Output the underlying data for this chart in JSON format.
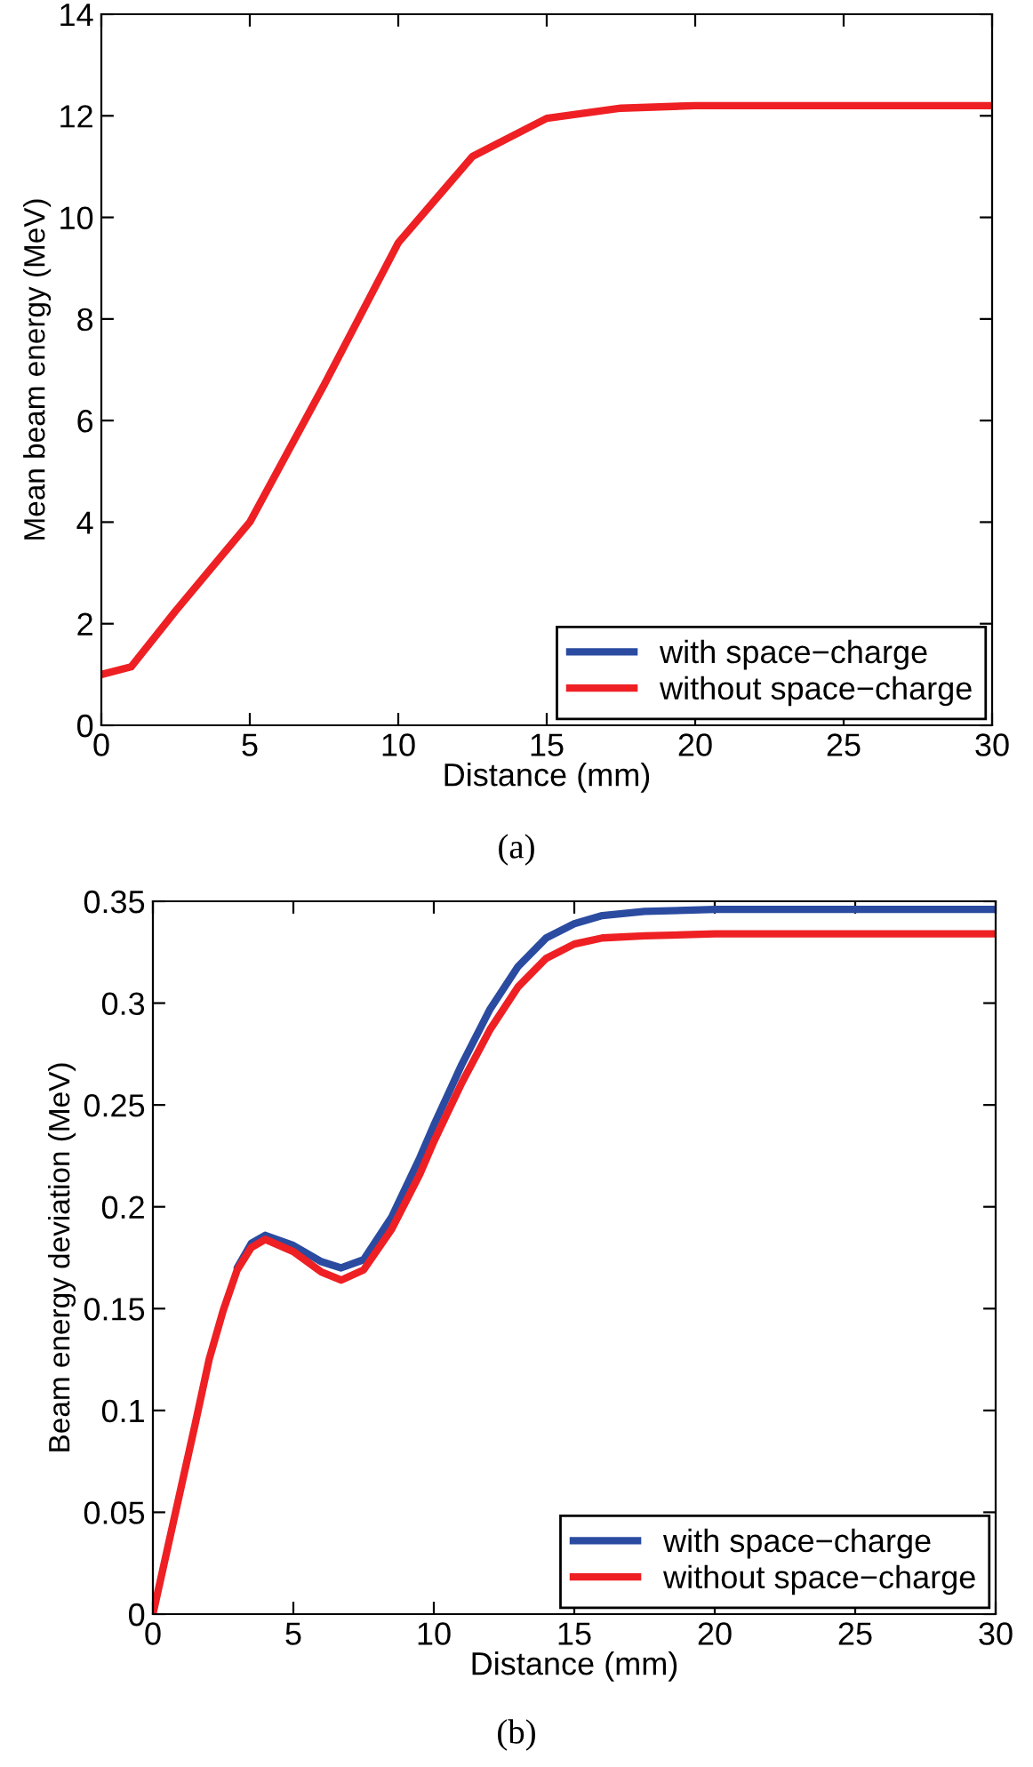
{
  "chart_data": [
    {
      "type": "line",
      "xlabel": "Distance (mm)",
      "ylabel": "Mean beam energy (MeV)",
      "xlim": [
        0,
        30
      ],
      "ylim": [
        0,
        14
      ],
      "xticks": [
        0,
        5,
        10,
        15,
        20,
        25,
        30
      ],
      "yticks": [
        0,
        2,
        4,
        6,
        8,
        10,
        12,
        14
      ],
      "grid": false,
      "legend": "bottom right",
      "annotations": [
        "(a)"
      ],
      "x": [
        0,
        1,
        2.5,
        5,
        7.5,
        10,
        12.5,
        15,
        17.5,
        20,
        25,
        30
      ],
      "series": [
        {
          "name": "with space−charge",
          "color": "#2a4ba0",
          "values": [
            null,
            null,
            null,
            null,
            null,
            null,
            null,
            null,
            null,
            null,
            null,
            null
          ]
        },
        {
          "name": "without space−charge",
          "color": "#ee2024",
          "values": [
            1.0,
            1.15,
            2.25,
            4.0,
            6.7,
            9.5,
            11.2,
            11.95,
            12.15,
            12.2,
            12.2,
            12.2
          ]
        }
      ]
    },
    {
      "type": "line",
      "xlabel": "Distance (mm)",
      "ylabel": "Beam energy deviation (MeV)",
      "xlim": [
        0,
        30
      ],
      "ylim": [
        0,
        0.35
      ],
      "xticks": [
        0,
        5,
        10,
        15,
        20,
        25,
        30
      ],
      "yticks": [
        0,
        0.05,
        0.1,
        0.15,
        0.2,
        0.25,
        0.3,
        0.35
      ],
      "grid": false,
      "legend": "bottom right",
      "annotations": [
        "(b)"
      ],
      "x": [
        0,
        0.5,
        1,
        1.5,
        2,
        2.5,
        3,
        3.5,
        4,
        5,
        6,
        6.7,
        7.5,
        8.5,
        9.5,
        10,
        11,
        12,
        13,
        14,
        15,
        16,
        17.5,
        20,
        30
      ],
      "series": [
        {
          "name": "with space−charge",
          "color": "#2a4ba0",
          "values": [
            null,
            null,
            null,
            null,
            null,
            null,
            0.17,
            0.182,
            0.186,
            0.181,
            0.173,
            0.17,
            0.174,
            0.195,
            0.224,
            0.24,
            0.27,
            0.297,
            0.318,
            0.332,
            0.339,
            0.343,
            0.345,
            0.346,
            0.346
          ]
        },
        {
          "name": "without space−charge",
          "color": "#ee2024",
          "values": [
            0,
            0.031,
            0.062,
            0.093,
            0.125,
            0.149,
            0.169,
            0.18,
            0.184,
            0.178,
            0.168,
            0.164,
            0.169,
            0.189,
            0.216,
            0.232,
            0.261,
            0.287,
            0.308,
            0.322,
            0.329,
            0.332,
            0.333,
            0.334,
            0.334
          ]
        }
      ]
    }
  ]
}
